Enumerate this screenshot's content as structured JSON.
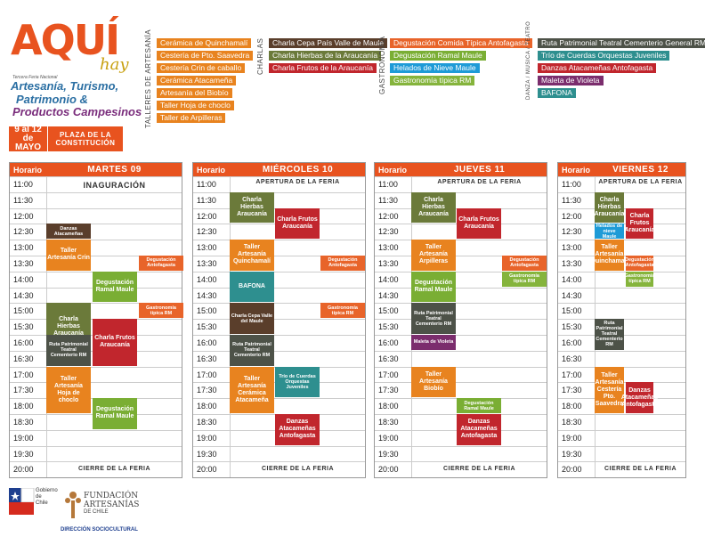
{
  "logo": {
    "main": "AQUÍ",
    "hay": "hay",
    "sub": "Tercera Feria Nacional",
    "line1": "Artesanía, Turismo,",
    "line2": "Patrimonio &",
    "line3": "Productos Campesinos"
  },
  "dates": {
    "range": "9 al 12 de MAYO",
    "place": "PLAZA DE LA CONSTITUCIÓN"
  },
  "legend": {
    "talleres_label": "TALLERES DE ARTESANÍA",
    "talleres": [
      "Cerámica de Quinchamalí",
      "Cestería de Pto. Saavedra",
      "Cestería Crin de caballo",
      "Cerámica Atacameña",
      "Artesanía del Biobío",
      "Taller Hoja de choclo",
      "Taller de Arpilleras"
    ],
    "charlas_label": "CHARLAS",
    "charlas": [
      "Charla Cepa País Valle de Maule",
      "Charla Hierbas de la Araucanía",
      "Charla Frutos de la Araucanía"
    ],
    "gastro_label": "GASTRONOMÍA",
    "gastro": [
      "Degustación Comida Típica Antofagasta",
      "Degustación Ramal Maule",
      "Helados de Nieve Maule",
      "Gastronomía típica RM"
    ],
    "danza_label": "DANZA / MÚSICA / TEATRO",
    "danza": [
      "Ruta Patrimonial Teatral Cementerio General  RM",
      "Trío de Cuerdas Orquestas Juveniles",
      "Danzas Atacameñas Antofagasta",
      "Maleta de Violeta",
      "BAFONA"
    ]
  },
  "header_label": "Horario",
  "times": [
    "11:00",
    "11:30",
    "12:00",
    "12:30",
    "13:00",
    "13:30",
    "14:00",
    "14:30",
    "15:00",
    "15:30",
    "16:00",
    "16:30",
    "17:00",
    "17:30",
    "18:00",
    "18:30",
    "19:00",
    "19:30",
    "20:00"
  ],
  "days": [
    {
      "name": "MARTES 09",
      "open": "INAGURACIÓN",
      "close": "CIERRE DE LA FERIA",
      "events": [
        "Danzas Atacameñas",
        "Taller Artesanía Crin",
        "Degustación Antofagasta",
        "Degustación Ramal Maule",
        "Gastronomía típica RM",
        "Charla Hierbas Araucanía",
        "Charla Frutos Araucanía",
        "Ruta Patrimonial Teatral Cementerio RM",
        "Taller Artesanía Hoja de choclo",
        "Degustación Ramal Maule"
      ]
    },
    {
      "name": "MIÉRCOLES 10",
      "open": "APERTURA DE LA FERIA",
      "close": "CIERRE DE LA FERIA",
      "events": [
        "Charla Hierbas Araucanía",
        "Charla Frutos Araucanía",
        "Taller Artesanía Quinchamalí",
        "Degustación Antofagasta",
        "BAFONA",
        "Gastronomía típica RM",
        "Charla Cepa Valle del Maule",
        "Ruta Patrimonial Teatral Cementerio RM",
        "Trío de Cuerdas Orquestas Juveniles",
        "Taller Artesanía Cerámica Atacameña",
        "Danzas Atacameñas Antofagasta"
      ]
    },
    {
      "name": "JUEVES 11",
      "open": "APERTURA DE LA FERIA",
      "close": "CIERRE DE LA FERIA",
      "events": [
        "Charla Hierbas Araucanía",
        "Charla Frutos Araucanía",
        "Taller Artesanía Arpilleras",
        "Degustación Antofagasta",
        "Degustación Ramal Maule",
        "Gastronomía típica RM",
        "Ruta Patrimonial Teatral Cementerio RM",
        "Maleta de Violeta",
        "Taller Artesanía Biobío",
        "Degustación Ramal Maule",
        "Danzas Atacameñas Antofagasta"
      ]
    },
    {
      "name": "VIERNES 12",
      "open": "APERTURA DE LA FERIA",
      "close": "CIERRE DE LA FERIA",
      "events": [
        "Charla Hierbas Araucanía",
        "Charla Frutos Araucanía",
        "Helados de nieve Maule",
        "Taller Artesanía Quinchamalí",
        "Degustación Antofagasta",
        "Gastronomía típica RM",
        "Ruta Patrimonial Teatral Cementerio RM",
        "Taller Artesanía Cestería Pto. Saavedra",
        "Danzas Atacameñas Antofagasta"
      ]
    }
  ],
  "footer": {
    "gob": "Gobierno de Chile",
    "fund1": "FUNDACIÓN",
    "fund2": "ARTESANÍAS",
    "fund3": "DE CHILE",
    "fund4": "DIRECCIÓN SOCIOCULTURAL"
  }
}
